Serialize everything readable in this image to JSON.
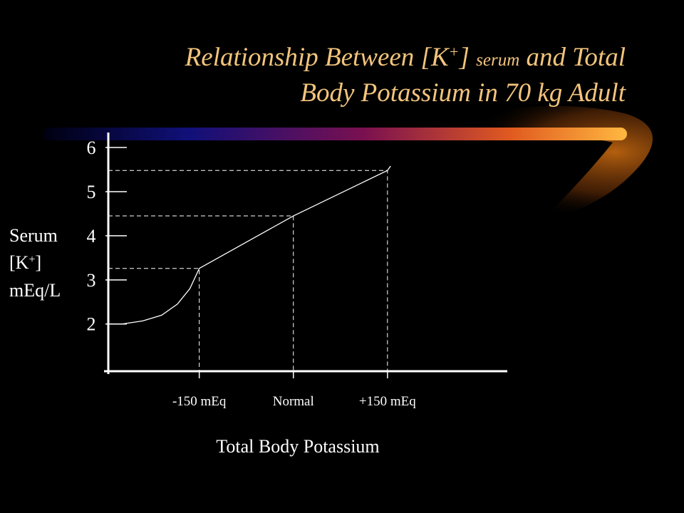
{
  "chart_data": {
    "type": "line",
    "title": [
      "Relationship Between [K",
      "+",
      "]",
      "serum",
      "and Total",
      "Body Potassium in 70 kg Adult"
    ],
    "y_label": [
      "Serum",
      "[K",
      "+",
      "]",
      "mEq/L"
    ],
    "x_label": "Total Body Potassium",
    "xlim": [
      -295,
      341
    ],
    "ylim": [
      0.93,
      6.34
    ],
    "yticks": [
      2,
      3,
      4,
      5,
      6
    ],
    "xticks": [
      {
        "value": -150,
        "label": "-150 mEq"
      },
      {
        "value": 0,
        "label": "Normal"
      },
      {
        "value": 150,
        "label": "+150 mEq"
      }
    ],
    "series": [
      {
        "color": "#ffffff",
        "x": [
          -273,
          -240,
          -210,
          -185,
          -165,
          -150,
          0,
          150,
          155
        ],
        "values": [
          2.0,
          2.07,
          2.2,
          2.45,
          2.8,
          3.26,
          4.45,
          5.48,
          5.58
        ]
      }
    ]
  }
}
